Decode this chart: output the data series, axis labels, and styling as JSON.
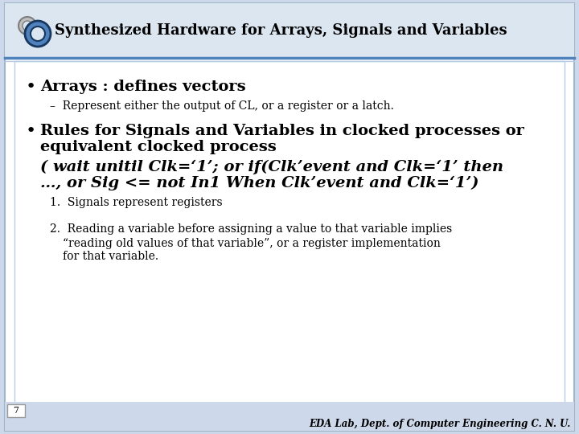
{
  "title": "Synthesized Hardware for Arrays, Signals and Variables",
  "bg_color": "#cdd9ea",
  "slide_bg": "#ffffff",
  "header_bg": "#dce6f1",
  "header_line1_color": "#4f81bd",
  "header_line2_color": "#b8cce4",
  "title_color": "#000000",
  "title_fontsize": 13,
  "bullet1": "Arrays : defines vectors",
  "sub1": "Represent either the output of CL, or a register or a latch.",
  "bullet2_line1": "Rules for Signals and Variables in clocked processes or",
  "bullet2_line2": "equivalent clocked process",
  "italic_line1": "( wait unitil Clk=‘1’; or if(Clk’event and Clk=‘1’ then",
  "italic_line2": "…, or Sig <= not In1 When Clk’event and Clk=‘1’)",
  "num1": "Signals represent registers",
  "num2a": "Reading a variable before assigning a value to that variable implies",
  "num2b": "“reading old values of that variable”, or a register implementation",
  "num2c": "for that variable.",
  "footer": "EDA Lab, Dept. of Computer Engineering C. N. U.",
  "page_number": "7",
  "bullet_fontsize": 14,
  "sub_fontsize": 10,
  "num_fontsize": 10,
  "italic_fontsize": 14
}
